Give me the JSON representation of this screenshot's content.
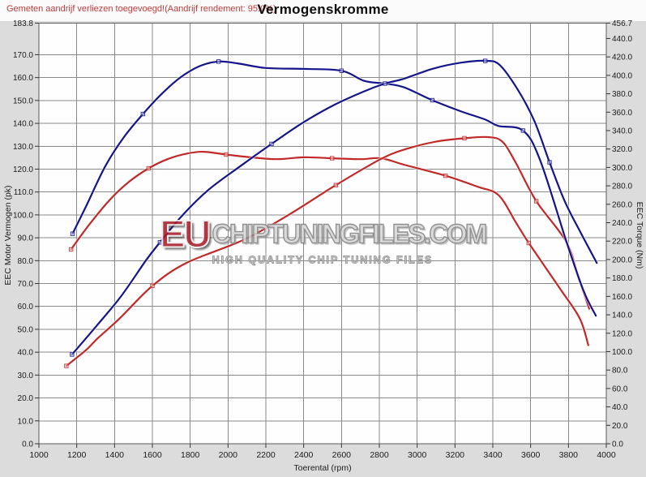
{
  "header": {
    "note": "Gemeten aandrijf verliezen toegevoegd!(Aandrijf rendement: 95.0%)",
    "title": "Vermogenskromme"
  },
  "watermark": {
    "eu": "EU",
    "domain": "CHIPTUNINGFILES.COM",
    "tagline": "HIGH QUALITY CHIP TUNING FILES"
  },
  "colors": {
    "curve_blue": "#14148c",
    "curve_red": "#c22828",
    "note_red": "#bf3b3b",
    "background": "#dcdcdc",
    "plot_background": "#fefefe",
    "grid": "#8a8a8a"
  },
  "chart_data": {
    "type": "line",
    "title": "Vermogenskromme",
    "xlabel": "Toerental (rpm)",
    "ylabel_left": "EEC Motor Vermogen (pk)",
    "ylabel_right": "EEC Torque (Nm)",
    "grid": true,
    "legend": "none",
    "x_range": [
      1000,
      4000
    ],
    "y_left_range": [
      0,
      183.8
    ],
    "y_right_range": [
      0,
      456.7
    ],
    "x_ticks": [
      1000,
      1200,
      1400,
      1600,
      1800,
      2000,
      2200,
      2400,
      2600,
      2800,
      3000,
      3200,
      3400,
      3600,
      3800,
      4000
    ],
    "y_left_ticks": [
      183.8,
      170,
      160,
      150,
      140,
      130,
      120,
      110,
      100,
      90,
      80,
      70,
      60,
      50,
      40,
      30,
      20,
      10,
      0
    ],
    "y_right_ticks": [
      456.7,
      440,
      420,
      400,
      380,
      360,
      340,
      320,
      300,
      280,
      260,
      240,
      220,
      200,
      180,
      160,
      140,
      120,
      100,
      80,
      60,
      40,
      20,
      0
    ],
    "series": [
      {
        "id": "torque-red",
        "axis": "right",
        "color": "#c22828",
        "unit": "Nm",
        "points": [
          [
            1170,
            211
          ],
          [
            1270,
            239
          ],
          [
            1380,
            266
          ],
          [
            1480,
            285
          ],
          [
            1580,
            299
          ],
          [
            1680,
            309
          ],
          [
            1780,
            315
          ],
          [
            1870,
            317
          ],
          [
            1990,
            314
          ],
          [
            2120,
            311
          ],
          [
            2260,
            309
          ],
          [
            2400,
            311
          ],
          [
            2550,
            310
          ],
          [
            2700,
            309
          ],
          [
            2810,
            310
          ],
          [
            2930,
            303
          ],
          [
            3150,
            291
          ],
          [
            3320,
            279
          ],
          [
            3430,
            270
          ],
          [
            3520,
            241
          ],
          [
            3590,
            218
          ],
          [
            3760,
            167
          ],
          [
            3860,
            136
          ],
          [
            3905,
            107
          ]
        ]
      },
      {
        "id": "power-red",
        "axis": "left",
        "color": "#c22828",
        "unit": "pk",
        "points": [
          [
            1145,
            34
          ],
          [
            1250,
            41
          ],
          [
            1310,
            46
          ],
          [
            1430,
            55
          ],
          [
            1600,
            69
          ],
          [
            1780,
            79
          ],
          [
            2080,
            89
          ],
          [
            2320,
            100
          ],
          [
            2570,
            113
          ],
          [
            2810,
            124.5
          ],
          [
            2950,
            129
          ],
          [
            3100,
            132
          ],
          [
            3250,
            133.5
          ],
          [
            3375,
            134
          ],
          [
            3450,
            132
          ],
          [
            3520,
            123
          ],
          [
            3630,
            106
          ],
          [
            3790,
            88
          ],
          [
            3855,
            72
          ],
          [
            3910,
            59
          ]
        ]
      },
      {
        "id": "torque-blue",
        "axis": "right",
        "color": "#14148c",
        "unit": "Nm",
        "points": [
          [
            1178,
            228
          ],
          [
            1250,
            258
          ],
          [
            1350,
            301
          ],
          [
            1450,
            333
          ],
          [
            1550,
            358
          ],
          [
            1650,
            380
          ],
          [
            1750,
            398
          ],
          [
            1850,
            410
          ],
          [
            1950,
            415
          ],
          [
            2050,
            413
          ],
          [
            2200,
            408
          ],
          [
            2400,
            407
          ],
          [
            2600,
            405
          ],
          [
            2720,
            394
          ],
          [
            2830,
            391
          ],
          [
            2930,
            387
          ],
          [
            3080,
            373
          ],
          [
            3230,
            361
          ],
          [
            3360,
            352
          ],
          [
            3430,
            345
          ],
          [
            3560,
            340
          ],
          [
            3650,
            308
          ],
          [
            3790,
            219
          ],
          [
            3880,
            166
          ],
          [
            3945,
            139
          ]
        ]
      },
      {
        "id": "power-blue",
        "axis": "left",
        "color": "#14148c",
        "unit": "pk",
        "points": [
          [
            1175,
            39
          ],
          [
            1310,
            52
          ],
          [
            1435,
            64.5
          ],
          [
            1565,
            80
          ],
          [
            1640,
            88
          ],
          [
            1750,
            99
          ],
          [
            1890,
            110.5
          ],
          [
            2060,
            121
          ],
          [
            2230,
            131
          ],
          [
            2400,
            140.5
          ],
          [
            2560,
            148
          ],
          [
            2720,
            154
          ],
          [
            2830,
            157.4
          ],
          [
            2930,
            159.5
          ],
          [
            3080,
            163.8
          ],
          [
            3230,
            166.5
          ],
          [
            3360,
            167.3
          ],
          [
            3435,
            165.6
          ],
          [
            3530,
            155
          ],
          [
            3620,
            141
          ],
          [
            3700,
            123
          ],
          [
            3780,
            106
          ],
          [
            3860,
            93
          ],
          [
            3950,
            79
          ]
        ]
      }
    ]
  }
}
